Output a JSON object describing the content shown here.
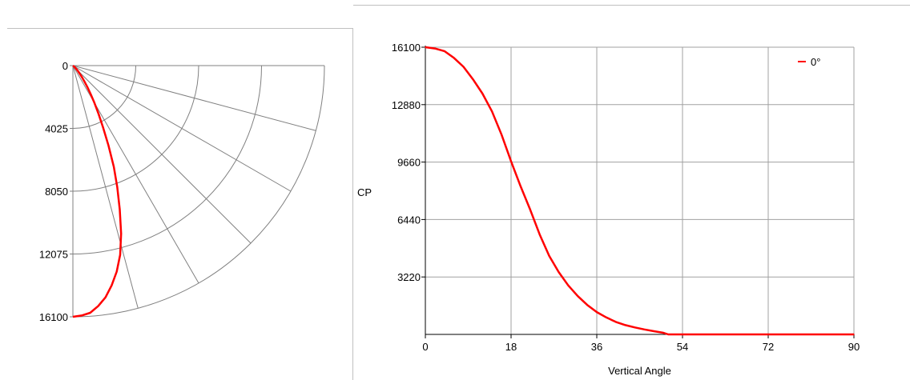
{
  "chart_data": [
    {
      "type": "polar",
      "radial_ticks": [
        "0",
        "4025",
        "8050",
        "12075",
        "16100"
      ],
      "rmax": 16100,
      "angle_range_deg": [
        0,
        90
      ],
      "series": [
        {
          "color": "#ff0000",
          "points": [
            [
              0,
              16100
            ],
            [
              2,
              16030
            ],
            [
              4,
              15880
            ],
            [
              6,
              15500
            ],
            [
              8,
              15000
            ],
            [
              10,
              14300
            ],
            [
              12,
              13500
            ],
            [
              14,
              12500
            ],
            [
              16,
              11200
            ],
            [
              18,
              9700
            ],
            [
              20,
              8300
            ],
            [
              22,
              7000
            ],
            [
              24,
              5600
            ],
            [
              26,
              4400
            ],
            [
              28,
              3500
            ],
            [
              30,
              2750
            ],
            [
              32,
              2150
            ],
            [
              34,
              1650
            ],
            [
              36,
              1250
            ],
            [
              38,
              950
            ],
            [
              40,
              700
            ],
            [
              42,
              520
            ],
            [
              44,
              390
            ],
            [
              46,
              280
            ],
            [
              48,
              180
            ],
            [
              50,
              90
            ],
            [
              51,
              0
            ],
            [
              90,
              0
            ]
          ]
        }
      ]
    },
    {
      "type": "line",
      "xlabel": "Vertical Angle",
      "ylabel": "CP",
      "xlim": [
        0,
        90
      ],
      "ylim": [
        0,
        16100
      ],
      "x_ticks": [
        "0",
        "18",
        "36",
        "54",
        "72",
        "90"
      ],
      "y_ticks": [
        "3220",
        "6440",
        "9660",
        "12880",
        "16100"
      ],
      "grid": true,
      "legend_position": "top-right",
      "series": [
        {
          "name": "0°",
          "color": "#ff0000",
          "x": [
            0,
            2,
            4,
            6,
            8,
            10,
            12,
            14,
            16,
            18,
            20,
            22,
            24,
            26,
            28,
            30,
            32,
            34,
            36,
            38,
            40,
            42,
            44,
            46,
            48,
            50,
            51,
            90
          ],
          "y": [
            16100,
            16030,
            15880,
            15500,
            15000,
            14300,
            13500,
            12500,
            11200,
            9700,
            8300,
            7000,
            5600,
            4400,
            3500,
            2750,
            2150,
            1650,
            1250,
            950,
            700,
            520,
            390,
            280,
            180,
            90,
            0,
            0
          ]
        }
      ]
    }
  ]
}
